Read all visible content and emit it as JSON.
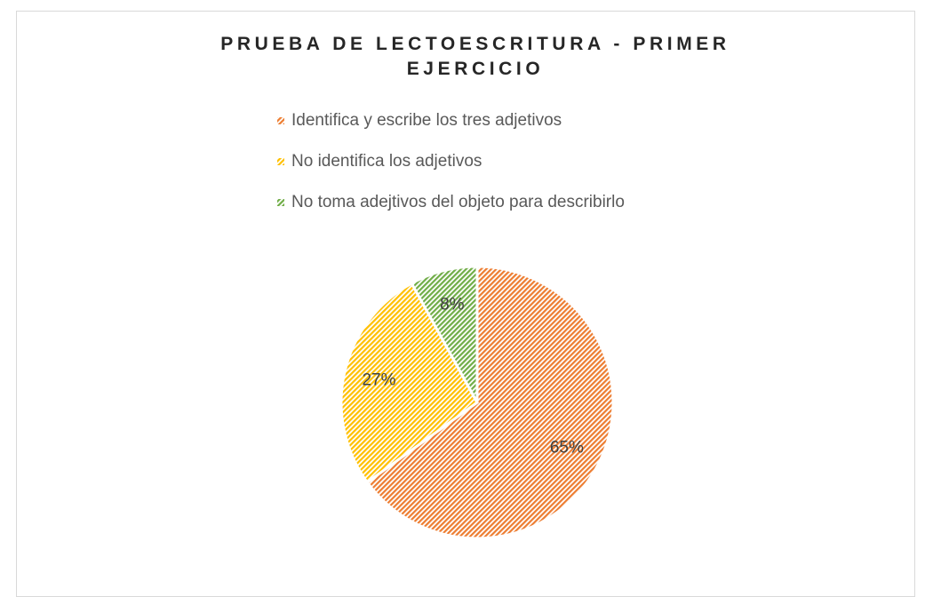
{
  "chart_data": {
    "type": "pie",
    "title": "PRUEBA DE LECTOESCRITURA - PRIMER EJERCICIO",
    "categories": [
      "Identifica y escribe los tres adjetivos",
      "No identifica los adjetivos",
      "No toma adejtivos del objeto para describirlo"
    ],
    "values": [
      65,
      27,
      8
    ],
    "value_labels": [
      "65%",
      "27%",
      "8%"
    ],
    "colors": [
      "#ed7d31",
      "#ffc000",
      "#70ad47"
    ],
    "legend": "top"
  }
}
